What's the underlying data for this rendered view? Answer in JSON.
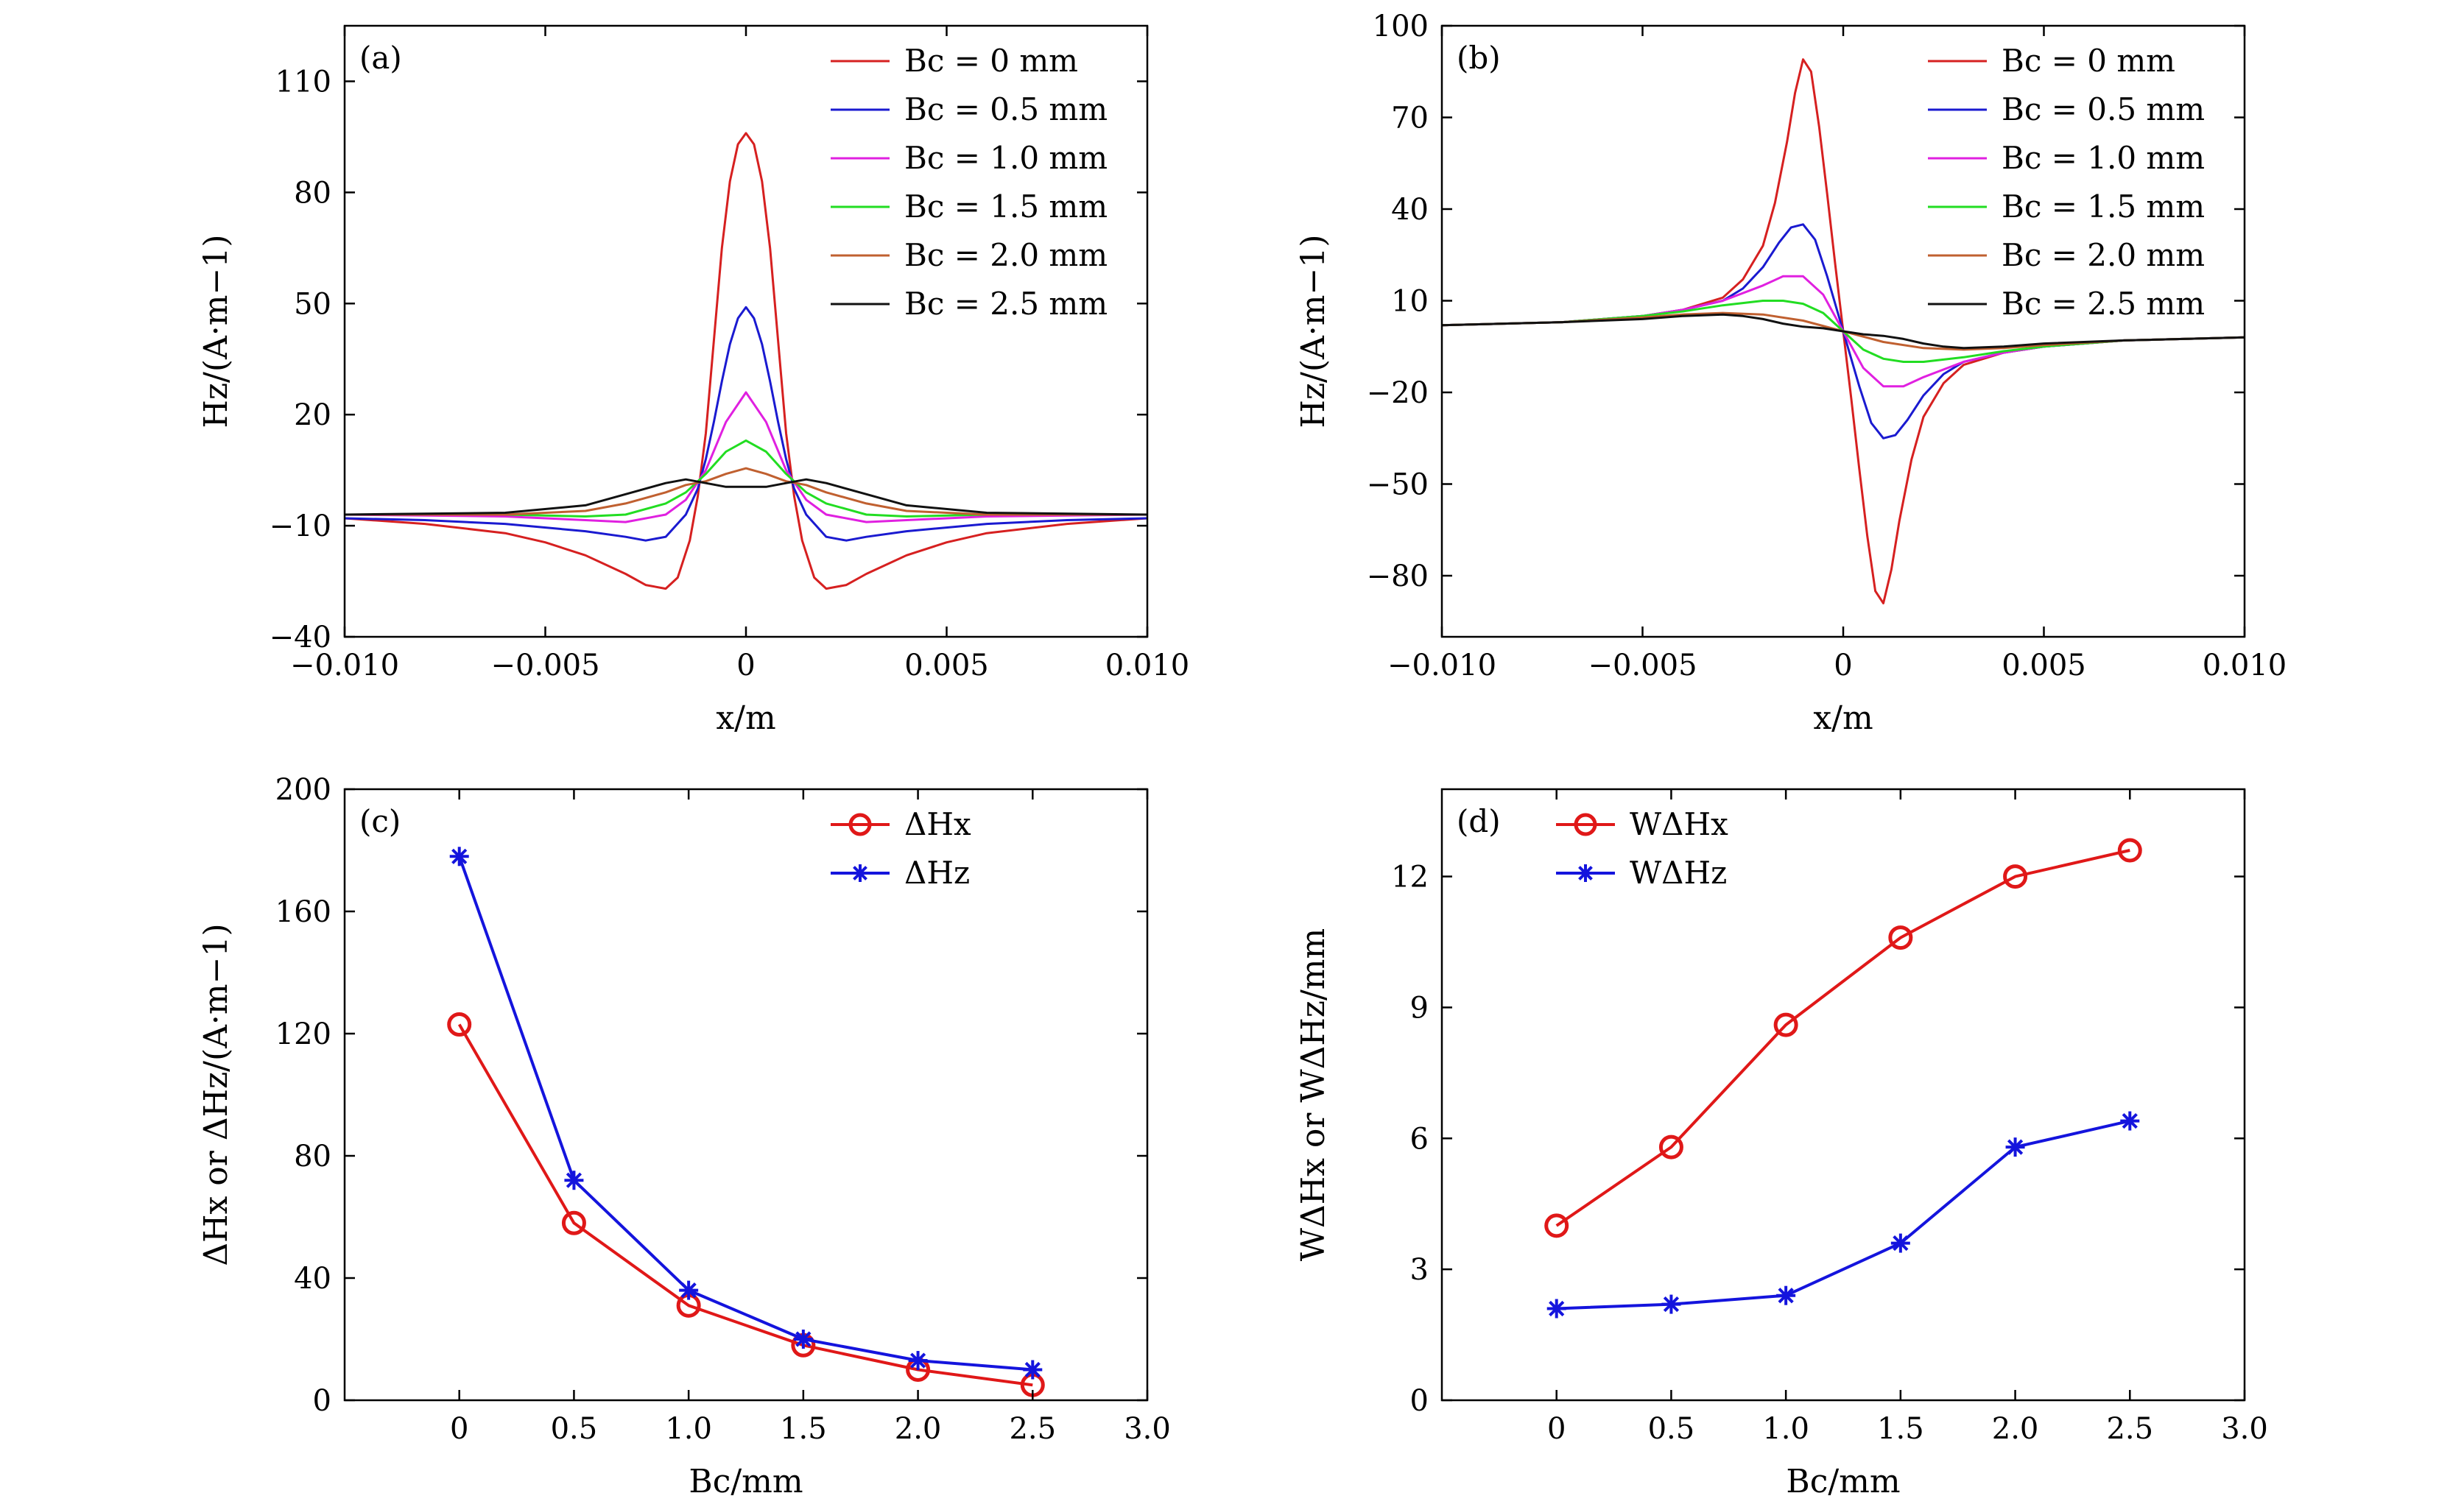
{
  "chart_data": [
    {
      "id": "a",
      "type": "line",
      "panel_label": "(a)",
      "xlabel": "x/m",
      "ylabel": "Hz/(A·m−1)",
      "xlim": [
        -0.01,
        0.01
      ],
      "ylim": [
        -40,
        125
      ],
      "xticks": [
        -0.01,
        -0.005,
        0,
        0.005,
        0.01
      ],
      "xtick_labels": [
        "−0.010",
        "−0.005",
        "0",
        "0.005",
        "0.010"
      ],
      "yticks": [
        -40,
        -10,
        20,
        50,
        80,
        110
      ],
      "ytick_labels": [
        "−40",
        "−10",
        "20",
        "50",
        "80",
        "110"
      ],
      "legend_position": "top-right",
      "series": [
        {
          "name": "Bc = 0 mm",
          "color": "#d62020",
          "x": [
            -0.01,
            -0.008,
            -0.006,
            -0.005,
            -0.004,
            -0.003,
            -0.0025,
            -0.002,
            -0.0017,
            -0.0014,
            -0.0012,
            -0.001,
            -0.0008,
            -0.0006,
            -0.0004,
            -0.0002,
            0,
            0.0002,
            0.0004,
            0.0006,
            0.0008,
            0.001,
            0.0012,
            0.0014,
            0.0017,
            0.002,
            0.0025,
            0.003,
            0.004,
            0.005,
            0.006,
            0.008,
            0.01
          ],
          "y": [
            -8,
            -9.5,
            -12,
            -14.5,
            -18,
            -23,
            -26,
            -27,
            -24,
            -14,
            -2,
            15,
            40,
            65,
            83,
            93,
            96,
            93,
            83,
            65,
            40,
            15,
            -2,
            -14,
            -24,
            -27,
            -26,
            -23,
            -18,
            -14.5,
            -12,
            -9.5,
            -8
          ]
        },
        {
          "name": "Bc = 0.5 mm",
          "color": "#1a1ad0",
          "x": [
            -0.01,
            -0.008,
            -0.006,
            -0.004,
            -0.003,
            -0.0025,
            -0.002,
            -0.0015,
            -0.0012,
            -0.001,
            -0.0008,
            -0.0006,
            -0.0004,
            -0.0002,
            0,
            0.0002,
            0.0004,
            0.0006,
            0.0008,
            0.001,
            0.0012,
            0.0015,
            0.002,
            0.0025,
            0.003,
            0.004,
            0.006,
            0.008,
            0.01
          ],
          "y": [
            -8,
            -8.5,
            -9.5,
            -11.5,
            -13,
            -14,
            -13,
            -7,
            0,
            8,
            18,
            29,
            39,
            46,
            49,
            46,
            39,
            29,
            18,
            8,
            0,
            -7,
            -13,
            -14,
            -13,
            -11.5,
            -9.5,
            -8.5,
            -8
          ]
        },
        {
          "name": "Bc = 1.0 mm",
          "color": "#e020e0",
          "x": [
            -0.01,
            -0.006,
            -0.004,
            -0.003,
            -0.002,
            -0.0015,
            -0.001,
            -0.0005,
            0,
            0.0005,
            0.001,
            0.0015,
            0.002,
            0.003,
            0.004,
            0.006,
            0.01
          ],
          "y": [
            -7,
            -7.5,
            -8.5,
            -9,
            -7,
            -3,
            5,
            18,
            26,
            18,
            5,
            -3,
            -7,
            -9,
            -8.5,
            -7.5,
            -7
          ]
        },
        {
          "name": "Bc = 1.5 mm",
          "color": "#22dd22",
          "x": [
            -0.01,
            -0.006,
            -0.004,
            -0.003,
            -0.002,
            -0.0015,
            -0.001,
            -0.0005,
            0,
            0.0005,
            0.001,
            0.0015,
            0.002,
            0.003,
            0.004,
            0.006,
            0.01
          ],
          "y": [
            -7,
            -7,
            -7.5,
            -7,
            -4,
            -1,
            4,
            10,
            13,
            10,
            4,
            -1,
            -4,
            -7,
            -7.5,
            -7,
            -7
          ]
        },
        {
          "name": "Bc = 2.0 mm",
          "color": "#c06030",
          "x": [
            -0.01,
            -0.006,
            -0.004,
            -0.003,
            -0.002,
            -0.0015,
            -0.001,
            -0.0005,
            0,
            0.0005,
            0.001,
            0.0015,
            0.002,
            0.003,
            0.004,
            0.006,
            0.01
          ],
          "y": [
            -7,
            -7,
            -6,
            -4,
            -1,
            1,
            2,
            4,
            5.5,
            4,
            2,
            1,
            -1,
            -4,
            -6,
            -7,
            -7
          ]
        },
        {
          "name": "Bc = 2.5 mm",
          "color": "#111111",
          "x": [
            -0.01,
            -0.006,
            -0.004,
            -0.003,
            -0.002,
            -0.0015,
            -0.001,
            -0.0005,
            0,
            0.0005,
            0.001,
            0.0015,
            0.002,
            0.003,
            0.004,
            0.006,
            0.01
          ],
          "y": [
            -7,
            -6.5,
            -4.5,
            -1.5,
            1.5,
            2.5,
            1.5,
            0.5,
            0.5,
            0.5,
            1.5,
            2.5,
            1.5,
            -1.5,
            -4.5,
            -6.5,
            -7
          ]
        }
      ]
    },
    {
      "id": "b",
      "type": "line",
      "panel_label": "(b)",
      "xlabel": "x/m",
      "ylabel": "Hz/(A·m−1)",
      "xlim": [
        -0.01,
        0.01
      ],
      "ylim": [
        -100,
        100
      ],
      "xticks": [
        -0.01,
        -0.005,
        0,
        0.005,
        0.01
      ],
      "xtick_labels": [
        "−0.010",
        "−0.005",
        "0",
        "0.005",
        "0.010"
      ],
      "yticks": [
        -80,
        -50,
        -20,
        10,
        40,
        70,
        100
      ],
      "ytick_labels": [
        "−80",
        "−50",
        "−20",
        "10",
        "40",
        "70",
        "100"
      ],
      "legend_position": "top-right",
      "series": [
        {
          "name": "Bc = 0 mm",
          "color": "#d62020",
          "x": [
            -0.01,
            -0.007,
            -0.005,
            -0.004,
            -0.003,
            -0.0025,
            -0.002,
            -0.0017,
            -0.0014,
            -0.0012,
            -0.001,
            -0.0008,
            -0.0006,
            -0.0004,
            -0.0002,
            0,
            0.0002,
            0.0004,
            0.0006,
            0.0008,
            0.001,
            0.0012,
            0.0014,
            0.0017,
            0.002,
            0.0025,
            0.003,
            0.004,
            0.005,
            0.007,
            0.01
          ],
          "y": [
            2,
            3,
            5,
            7,
            11,
            17,
            28,
            42,
            62,
            78,
            89,
            85,
            67,
            45,
            22,
            0,
            -22,
            -45,
            -67,
            -85,
            -89,
            -78,
            -62,
            -42,
            -28,
            -17,
            -11,
            -7,
            -5,
            -3,
            -2
          ]
        },
        {
          "name": "Bc = 0.5 mm",
          "color": "#1a1ad0",
          "x": [
            -0.01,
            -0.007,
            -0.005,
            -0.004,
            -0.003,
            -0.0025,
            -0.002,
            -0.0016,
            -0.0013,
            -0.001,
            -0.0007,
            -0.0004,
            0,
            0.0004,
            0.0007,
            0.001,
            0.0013,
            0.0016,
            0.002,
            0.0025,
            0.003,
            0.004,
            0.005,
            0.007,
            0.01
          ],
          "y": [
            2,
            3,
            5,
            7,
            10,
            14,
            21,
            29,
            34,
            35,
            30,
            18,
            0,
            -18,
            -30,
            -35,
            -34,
            -29,
            -21,
            -14,
            -10,
            -7,
            -5,
            -3,
            -2
          ]
        },
        {
          "name": "Bc = 1.0 mm",
          "color": "#e020e0",
          "x": [
            -0.01,
            -0.007,
            -0.005,
            -0.004,
            -0.003,
            -0.002,
            -0.0015,
            -0.001,
            -0.0005,
            0,
            0.0005,
            0.001,
            0.0015,
            0.002,
            0.003,
            0.004,
            0.005,
            0.007,
            0.01
          ],
          "y": [
            2,
            3,
            5,
            7,
            10,
            15,
            18,
            18,
            12,
            0,
            -12,
            -18,
            -18,
            -15,
            -10,
            -7,
            -5,
            -3,
            -2
          ]
        },
        {
          "name": "Bc = 1.5 mm",
          "color": "#22dd22",
          "x": [
            -0.01,
            -0.007,
            -0.005,
            -0.004,
            -0.003,
            -0.002,
            -0.0015,
            -0.001,
            -0.0005,
            0,
            0.0005,
            0.001,
            0.0015,
            0.002,
            0.003,
            0.004,
            0.005,
            0.007,
            0.01
          ],
          "y": [
            2,
            3,
            5,
            6.5,
            8.5,
            10,
            10,
            9,
            6,
            0,
            -6,
            -9,
            -10,
            -10,
            -8.5,
            -6.5,
            -5,
            -3,
            -2
          ]
        },
        {
          "name": "Bc = 2.0 mm",
          "color": "#c06030",
          "x": [
            -0.01,
            -0.007,
            -0.005,
            -0.004,
            -0.003,
            -0.002,
            -0.001,
            0,
            0.001,
            0.002,
            0.003,
            0.004,
            0.005,
            0.007,
            0.01
          ],
          "y": [
            2,
            3,
            4.5,
            5.5,
            6,
            5.5,
            3.5,
            0,
            -3.5,
            -5.5,
            -6,
            -5.5,
            -4.5,
            -3,
            -2
          ]
        },
        {
          "name": "Bc = 2.5 mm",
          "color": "#111111",
          "x": [
            -0.01,
            -0.007,
            -0.005,
            -0.004,
            -0.003,
            -0.0025,
            -0.002,
            -0.0015,
            -0.001,
            -0.0005,
            0,
            0.0005,
            0.001,
            0.0015,
            0.002,
            0.0025,
            0.003,
            0.004,
            0.005,
            0.007,
            0.01
          ],
          "y": [
            2,
            3,
            4,
            5,
            5.5,
            5,
            4,
            2.5,
            1.5,
            1,
            0,
            -1,
            -1.5,
            -2.5,
            -4,
            -5,
            -5.5,
            -5,
            -4,
            -3,
            -2
          ]
        }
      ]
    },
    {
      "id": "c",
      "type": "line",
      "panel_label": "(c)",
      "xlabel": "Bc/mm",
      "ylabel": "ΔHx or ΔHz/(A·m−1)",
      "xlim": [
        -0.5,
        3.0
      ],
      "ylim": [
        0,
        200
      ],
      "xticks": [
        0,
        0.5,
        1.0,
        1.5,
        2.0,
        2.5,
        3.0
      ],
      "xtick_labels": [
        "0",
        "0.5",
        "1.0",
        "1.5",
        "2.0",
        "2.5",
        "3.0"
      ],
      "yticks": [
        0,
        40,
        80,
        120,
        160,
        200
      ],
      "ytick_labels": [
        "0",
        "40",
        "80",
        "120",
        "160",
        "200"
      ],
      "legend_position": "top-right",
      "categories": [
        0,
        0.5,
        1.0,
        1.5,
        2.0,
        2.5
      ],
      "series": [
        {
          "name": "ΔHx",
          "color": "#e01818",
          "marker": "circle",
          "values": [
            123,
            58,
            31,
            18,
            10,
            5
          ]
        },
        {
          "name": "ΔHz",
          "color": "#1414dd",
          "marker": "star",
          "values": [
            178,
            72,
            36,
            20,
            13,
            10
          ]
        }
      ]
    },
    {
      "id": "d",
      "type": "line",
      "panel_label": "(d)",
      "xlabel": "Bc/mm",
      "ylabel": "WΔHx or WΔHz/mm",
      "xlim": [
        -0.5,
        3.0
      ],
      "ylim": [
        0,
        14
      ],
      "xticks": [
        0,
        0.5,
        1.0,
        1.5,
        2.0,
        2.5,
        3.0
      ],
      "xtick_labels": [
        "0",
        "0.5",
        "1.0",
        "1.5",
        "2.0",
        "2.5",
        "3.0"
      ],
      "yticks": [
        0,
        3,
        6,
        9,
        12
      ],
      "ytick_labels": [
        "0",
        "3",
        "6",
        "9",
        "12"
      ],
      "legend_position": "top-left",
      "categories": [
        0,
        0.5,
        1.0,
        1.5,
        2.0,
        2.5
      ],
      "series": [
        {
          "name": "WΔHx",
          "color": "#e01818",
          "marker": "circle",
          "values": [
            4.0,
            5.8,
            8.6,
            10.6,
            12.0,
            12.6
          ]
        },
        {
          "name": "WΔHz",
          "color": "#1414dd",
          "marker": "star",
          "values": [
            2.1,
            2.2,
            2.4,
            3.6,
            5.8,
            6.4
          ]
        }
      ]
    }
  ]
}
